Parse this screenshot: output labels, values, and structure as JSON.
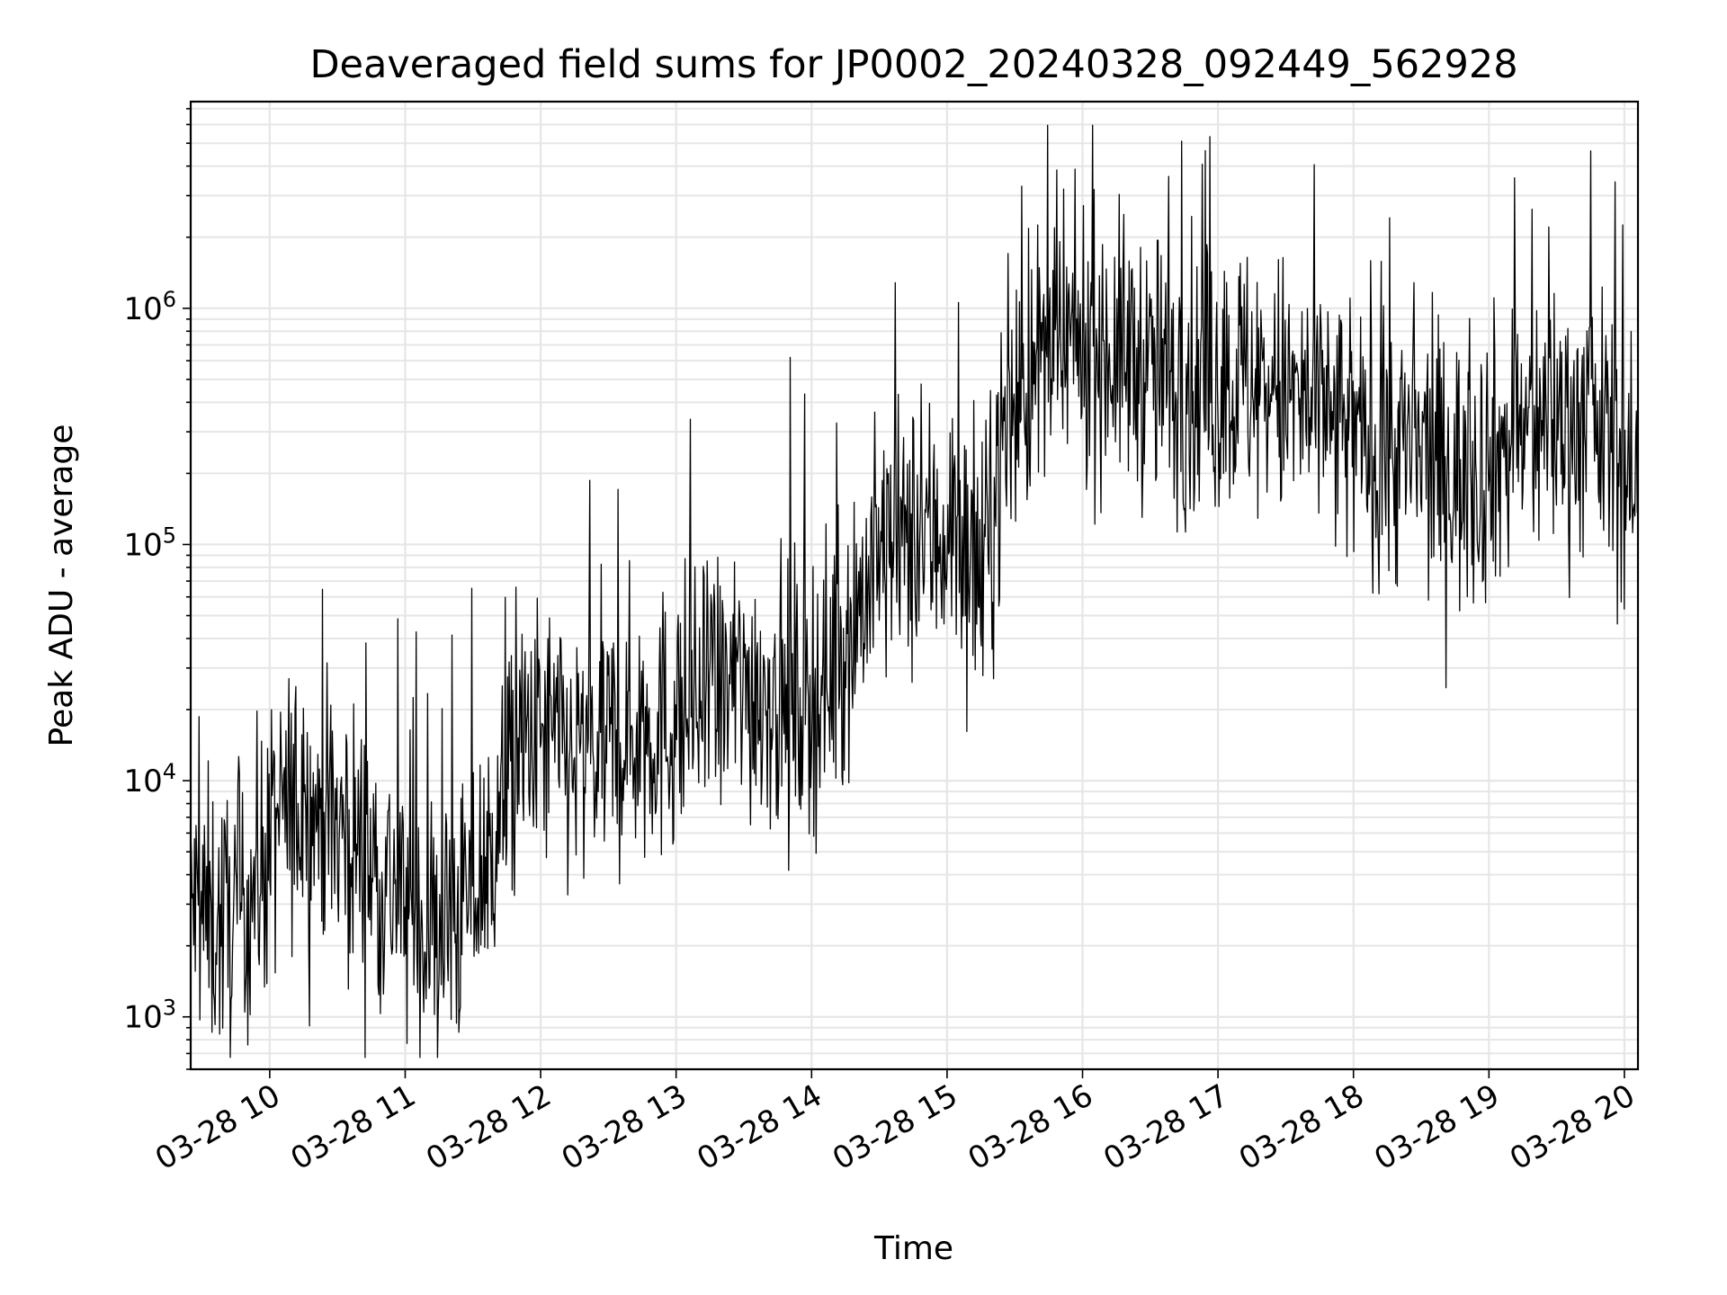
{
  "chart_data": {
    "type": "line",
    "title": "Deaveraged field sums for JP0002_20240328_092449_562928",
    "xlabel": "Time",
    "ylabel": "Peak ADU - average",
    "x_scale": "time",
    "y_scale": "log",
    "xlim": [
      "03-28 09:25",
      "03-28 20:06"
    ],
    "ylim": [
      600,
      7500000
    ],
    "grid": true,
    "x_ticks": [
      "03-28 10",
      "03-28 11",
      "03-28 12",
      "03-28 13",
      "03-28 14",
      "03-28 15",
      "03-28 16",
      "03-28 17",
      "03-28 18",
      "03-28 19",
      "03-28 20"
    ],
    "y_ticks": [
      {
        "value": 1000,
        "base": "10",
        "exp": "3"
      },
      {
        "value": 10000,
        "base": "10",
        "exp": "4"
      },
      {
        "value": 100000,
        "base": "10",
        "exp": "5"
      },
      {
        "value": 1000000,
        "base": "10",
        "exp": "6"
      }
    ],
    "line_color": "#000000",
    "series": [
      {
        "x": [
          "03-28 09:25",
          "03-28 09:35",
          "03-28 09:45",
          "03-28 09:55",
          "03-28 10:05",
          "03-28 10:15",
          "03-28 10:25",
          "03-28 10:35",
          "03-28 10:45",
          "03-28 10:55",
          "03-28 11:05",
          "03-28 11:15",
          "03-28 11:25",
          "03-28 11:35",
          "03-28 11:45",
          "03-28 11:55",
          "03-28 12:05",
          "03-28 12:15",
          "03-28 12:25",
          "03-28 12:35",
          "03-28 12:45",
          "03-28 12:55",
          "03-28 13:05",
          "03-28 13:15",
          "03-28 13:25",
          "03-28 13:35",
          "03-28 13:45",
          "03-28 13:55",
          "03-28 14:05",
          "03-28 14:15",
          "03-28 14:25",
          "03-28 14:35",
          "03-28 14:45",
          "03-28 14:55",
          "03-28 15:05",
          "03-28 15:15",
          "03-28 15:25",
          "03-28 15:35",
          "03-28 15:45",
          "03-28 15:55",
          "03-28 16:05",
          "03-28 16:15",
          "03-28 16:25",
          "03-28 16:35",
          "03-28 16:45",
          "03-28 16:55",
          "03-28 17:05",
          "03-28 17:15",
          "03-28 17:25",
          "03-28 17:35",
          "03-28 17:45",
          "03-28 17:55",
          "03-28 18:05",
          "03-28 18:15",
          "03-28 18:25",
          "03-28 18:35",
          "03-28 18:45",
          "03-28 18:55",
          "03-28 19:05",
          "03-28 19:15",
          "03-28 19:25",
          "03-28 19:35",
          "03-28 19:45",
          "03-28 19:55",
          "03-28 20:05"
        ],
        "y": [
          3000,
          2500,
          2500,
          4000,
          7000,
          8000,
          7000,
          6000,
          4500,
          3500,
          2500,
          2200,
          2800,
          4000,
          9000,
          15000,
          15000,
          12000,
          13000,
          15000,
          17000,
          17000,
          20000,
          22000,
          25000,
          25000,
          23000,
          22000,
          25000,
          40000,
          70000,
          100000,
          100000,
          110000,
          120000,
          60000,
          300000,
          500000,
          600000,
          650000,
          700000,
          650000,
          600000,
          500000,
          500000,
          450000,
          500000,
          500000,
          450000,
          400000,
          350000,
          300000,
          280000,
          250000,
          250000,
          220000,
          200000,
          210000,
          250000,
          300000,
          330000,
          350000,
          320000,
          280000,
          150000
        ]
      }
    ]
  }
}
